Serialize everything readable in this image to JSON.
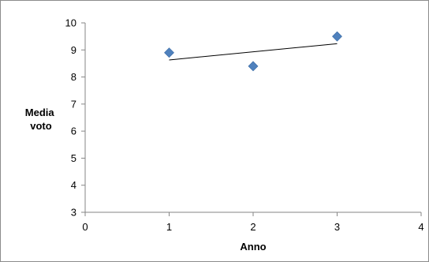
{
  "chart_data": {
    "type": "scatter",
    "title": "",
    "xlabel": "Anno",
    "ylabel_lines": [
      "Media",
      "voto"
    ],
    "xlim": [
      0,
      4
    ],
    "ylim": [
      3,
      10
    ],
    "x_ticks": [
      0,
      1,
      2,
      3,
      4
    ],
    "y_ticks": [
      3,
      4,
      5,
      6,
      7,
      8,
      9,
      10
    ],
    "grid": false,
    "legend": "none",
    "series": [
      {
        "x": [
          1,
          2,
          3
        ],
        "y": [
          8.9,
          8.4,
          9.5
        ],
        "marker": "diamond",
        "color": "#4f81bd"
      }
    ],
    "trendline": {
      "kind": "linear",
      "from": [
        1,
        8.63
      ],
      "to": [
        3,
        9.23
      ],
      "color": "#000000"
    }
  }
}
